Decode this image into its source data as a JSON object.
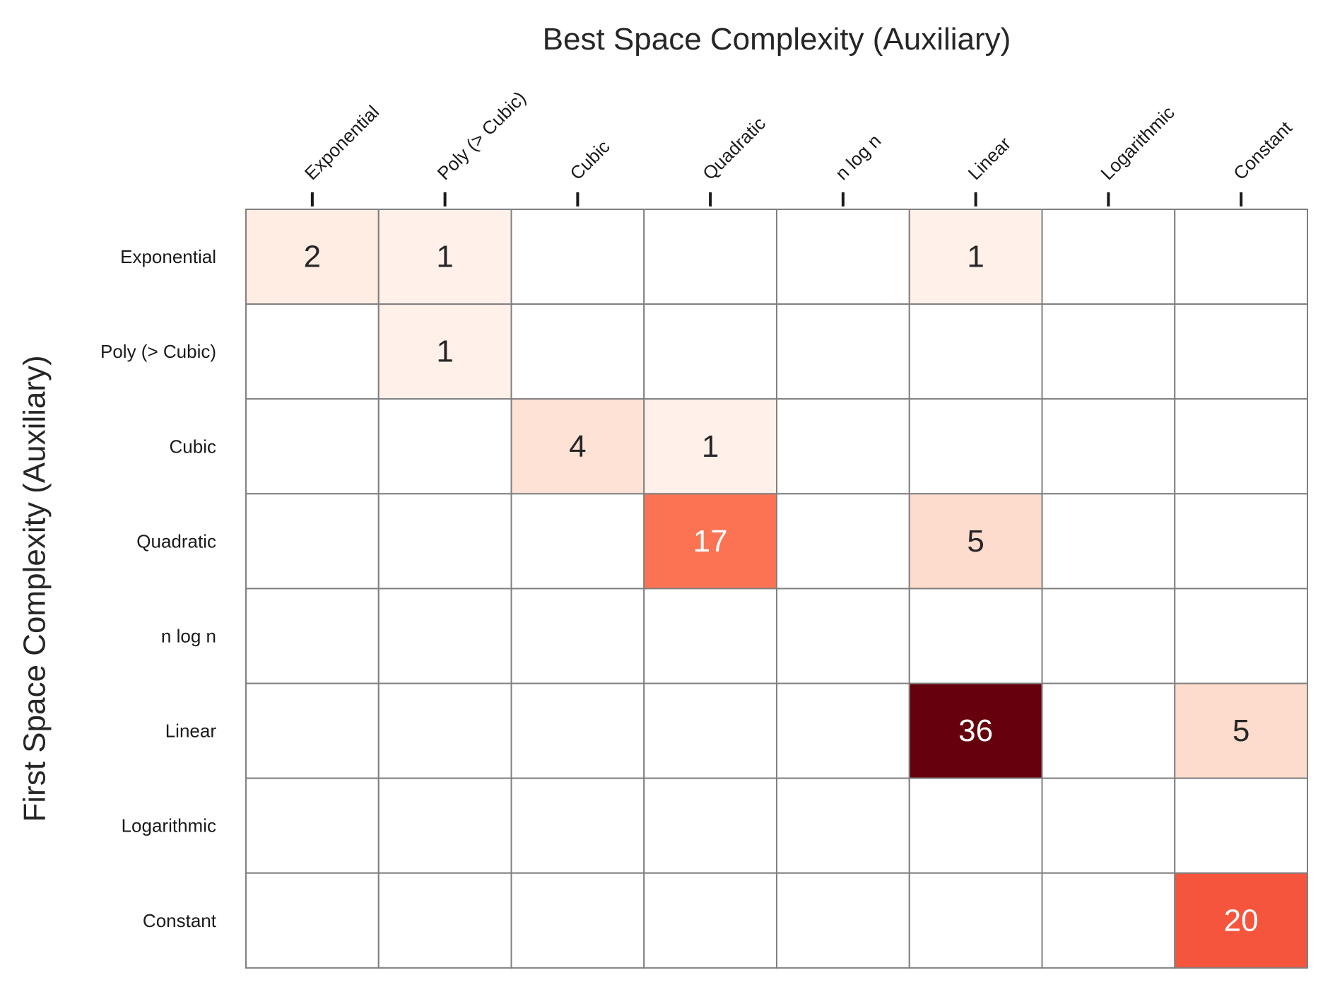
{
  "chart_data": {
    "type": "heatmap",
    "title": "",
    "xlabel": "Best Space Complexity (Auxiliary)",
    "ylabel": "First Space Complexity (Auxiliary)",
    "x_categories": [
      "Exponential",
      "Poly (> Cubic)",
      "Cubic",
      "Quadratic",
      "n log n",
      "Linear",
      "Logarithmic",
      "Constant"
    ],
    "y_categories": [
      "Exponential",
      "Poly (> Cubic)",
      "Cubic",
      "Quadratic",
      "n log n",
      "Linear",
      "Logarithmic",
      "Constant"
    ],
    "values": [
      [
        2,
        1,
        0,
        0,
        0,
        1,
        0,
        0
      ],
      [
        0,
        1,
        0,
        0,
        0,
        0,
        0,
        0
      ],
      [
        0,
        0,
        4,
        1,
        0,
        0,
        0,
        0
      ],
      [
        0,
        0,
        0,
        17,
        0,
        5,
        0,
        0
      ],
      [
        0,
        0,
        0,
        0,
        0,
        0,
        0,
        0
      ],
      [
        0,
        0,
        0,
        0,
        0,
        36,
        0,
        5
      ],
      [
        0,
        0,
        0,
        0,
        0,
        0,
        0,
        0
      ],
      [
        0,
        0,
        0,
        0,
        0,
        0,
        0,
        20
      ]
    ],
    "zero_cells_annotated": false,
    "x_axis_position": "top",
    "colormap": "Reds",
    "color_range": [
      0,
      36
    ],
    "colors": {
      "grid_line": "#808080",
      "tick_mark": "#1a1a1a",
      "text_dark": "#262626",
      "text_light": "#ffffff"
    }
  }
}
